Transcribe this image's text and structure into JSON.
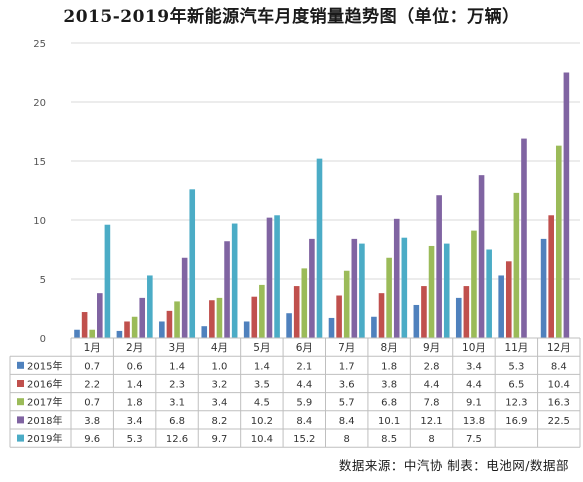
{
  "title": "2015-2019年新能源汽车月度销量趋势图（单位：万辆）",
  "source": "数据来源：中汽协    制表：电池网/数据部",
  "chart_data": {
    "type": "bar",
    "title": "2015-2019年新能源汽车月度销量趋势图（单位：万辆）",
    "categories": [
      "1月",
      "2月",
      "3月",
      "4月",
      "5月",
      "6月",
      "7月",
      "8月",
      "9月",
      "10月",
      "11月",
      "12月"
    ],
    "ylim": [
      0,
      25
    ],
    "yticks": [
      0,
      5,
      10,
      15,
      20,
      25
    ],
    "grid": true,
    "legend_position": "table-below",
    "data_table": true,
    "series": [
      {
        "name": "2015年",
        "color": "#4f81bd",
        "values": [
          0.7,
          0.6,
          1.4,
          1.0,
          1.4,
          2.1,
          1.7,
          1.8,
          2.8,
          3.4,
          5.3,
          8.4
        ],
        "labels": [
          "0.7",
          "0.6",
          "1.4",
          "1.0",
          "1.4",
          "2.1",
          "1.7",
          "1.8",
          "2.8",
          "3.4",
          "5.3",
          "8.4"
        ]
      },
      {
        "name": "2016年",
        "color": "#c0504d",
        "values": [
          2.2,
          1.4,
          2.3,
          3.2,
          3.5,
          4.4,
          3.6,
          3.8,
          4.4,
          4.4,
          6.5,
          10.4
        ],
        "labels": [
          "2.2",
          "1.4",
          "2.3",
          "3.2",
          "3.5",
          "4.4",
          "3.6",
          "3.8",
          "4.4",
          "4.4",
          "6.5",
          "10.4"
        ]
      },
      {
        "name": "2017年",
        "color": "#9bbb59",
        "values": [
          0.7,
          1.8,
          3.1,
          3.4,
          4.5,
          5.9,
          5.7,
          6.8,
          7.8,
          9.1,
          12.3,
          16.3
        ],
        "labels": [
          "0.7",
          "1.8",
          "3.1",
          "3.4",
          "4.5",
          "5.9",
          "5.7",
          "6.8",
          "7.8",
          "9.1",
          "12.3",
          "16.3"
        ]
      },
      {
        "name": "2018年",
        "color": "#8064a2",
        "values": [
          3.8,
          3.4,
          6.8,
          8.2,
          10.2,
          8.4,
          8.4,
          10.1,
          12.1,
          13.8,
          16.9,
          22.5
        ],
        "labels": [
          "3.8",
          "3.4",
          "6.8",
          "8.2",
          "10.2",
          "8.4",
          "8.4",
          "10.1",
          "12.1",
          "13.8",
          "16.9",
          "22.5"
        ]
      },
      {
        "name": "2019年",
        "color": "#4bacc6",
        "values": [
          9.6,
          5.3,
          12.6,
          9.7,
          10.4,
          15.2,
          8,
          8.5,
          8,
          7.5,
          null,
          null
        ],
        "labels": [
          "9.6",
          "5.3",
          "12.6",
          "9.7",
          "10.4",
          "15.2",
          "8",
          "8.5",
          "8",
          "7.5",
          "",
          ""
        ]
      }
    ]
  }
}
